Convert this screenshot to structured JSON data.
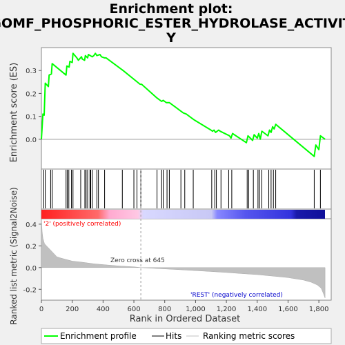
{
  "chart_data": {
    "type": "line",
    "title_lines": [
      "Enrichment plot:",
      "GOMF_PHOSPHORIC_ESTER_HYDROLASE_ACTIVIT",
      "Y"
    ],
    "xlabel": "Rank in Ordered Dataset",
    "ylabel_top": "Enrichment score (ES)",
    "ylabel_bottom": "Ranked list metric (Signal2Noise)",
    "xlim": [
      0,
      1880
    ],
    "x_ticks": [
      0,
      200,
      400,
      600,
      800,
      1000,
      1200,
      1400,
      1600,
      1800
    ],
    "x_tick_labels": [
      "0",
      "200",
      "400",
      "600",
      "800",
      "1,000",
      "1,200",
      "1,400",
      "1,600",
      "1,800"
    ],
    "es_ylim": [
      -0.13,
      0.4
    ],
    "es_ticks": [
      0.0,
      0.1,
      0.2,
      0.3
    ],
    "es_tick_labels": [
      "0.0",
      "0.1",
      "0.2",
      "0.3"
    ],
    "metric_ylim": [
      -0.3,
      0.45
    ],
    "metric_ticks": [
      -0.2,
      0.0,
      0.2,
      0.4
    ],
    "metric_tick_labels": [
      "-0.2",
      "0.0",
      "0.2",
      "0.4"
    ],
    "es_curve": {
      "x": [
        0,
        10,
        18,
        25,
        45,
        50,
        65,
        70,
        160,
        165,
        180,
        185,
        200,
        205,
        230,
        240,
        260,
        265,
        280,
        285,
        300,
        305,
        330,
        340,
        350,
        360,
        380,
        390,
        410,
        420,
        530,
        640,
        650,
        750,
        780,
        790,
        810,
        830,
        900,
        920,
        940,
        980,
        990,
        1100,
        1110,
        1120,
        1130,
        1150,
        1160,
        1220,
        1230,
        1240,
        1330,
        1340,
        1370,
        1380,
        1400,
        1410,
        1420,
        1430,
        1470,
        1480,
        1490,
        1500,
        1510,
        1520,
        1770,
        1780,
        1800,
        1810,
        1840
      ],
      "y": [
        0.0,
        0.11,
        0.105,
        0.245,
        0.23,
        0.28,
        0.285,
        0.33,
        0.28,
        0.32,
        0.315,
        0.34,
        0.335,
        0.375,
        0.355,
        0.345,
        0.36,
        0.35,
        0.345,
        0.365,
        0.355,
        0.37,
        0.36,
        0.365,
        0.375,
        0.365,
        0.37,
        0.36,
        0.355,
        0.355,
        0.3,
        0.24,
        0.24,
        0.18,
        0.165,
        0.17,
        0.16,
        0.16,
        0.125,
        0.115,
        0.11,
        0.09,
        0.085,
        0.04,
        0.035,
        0.04,
        0.03,
        0.04,
        0.035,
        0.015,
        0.005,
        0.025,
        -0.015,
        0.015,
        -0.005,
        0.02,
        0.005,
        0.025,
        0.0,
        0.035,
        0.015,
        0.04,
        0.03,
        0.055,
        0.045,
        0.065,
        -0.075,
        -0.025,
        -0.045,
        0.015,
        0.0
      ]
    },
    "hits": [
      15,
      25,
      60,
      70,
      160,
      168,
      178,
      195,
      205,
      255,
      282,
      290,
      300,
      315,
      320,
      330,
      360,
      370,
      410,
      525,
      600,
      620,
      645,
      750,
      780,
      790,
      815,
      830,
      905,
      930,
      985,
      1105,
      1125,
      1135,
      1165,
      1215,
      1235,
      1335,
      1345,
      1375,
      1405,
      1415,
      1430,
      1475,
      1490,
      1505,
      1520,
      1770,
      1810
    ],
    "metric_curve": {
      "x": [
        0,
        5,
        10,
        20,
        40,
        60,
        80,
        100,
        120,
        160,
        200,
        260,
        340,
        420,
        500,
        600,
        645,
        700,
        800,
        900,
        1000,
        1100,
        1200,
        1300,
        1400,
        1500,
        1600,
        1700,
        1750,
        1790,
        1815,
        1830,
        1840
      ],
      "y": [
        0.45,
        0.33,
        0.27,
        0.22,
        0.19,
        0.16,
        0.13,
        0.1,
        0.09,
        0.075,
        0.06,
        0.05,
        0.035,
        0.025,
        0.015,
        0.007,
        0.0,
        -0.005,
        -0.012,
        -0.02,
        -0.028,
        -0.036,
        -0.045,
        -0.055,
        -0.065,
        -0.078,
        -0.092,
        -0.115,
        -0.135,
        -0.16,
        -0.19,
        -0.24,
        -0.28
      ]
    },
    "zero_cross_x": 645,
    "zero_cross_label": "Zero cross at 645",
    "pos_label": "'2' (positively correlated)",
    "neg_label": "'REST' (negatively correlated)",
    "legend": [
      "Enrichment profile",
      "Hits",
      "Ranking metric scores"
    ],
    "colors": {
      "profile": "#00ff00",
      "hits": "#000000",
      "metric_fill": "#c0c0c0",
      "pos_text": "#ff0000",
      "neg_text": "#0000cc",
      "bar_gradient": [
        "#ff2020",
        "#ff7070",
        "#ffb0d0",
        "#ccccff",
        "#8080ff",
        "#3030e0",
        "#1010a0"
      ]
    }
  }
}
